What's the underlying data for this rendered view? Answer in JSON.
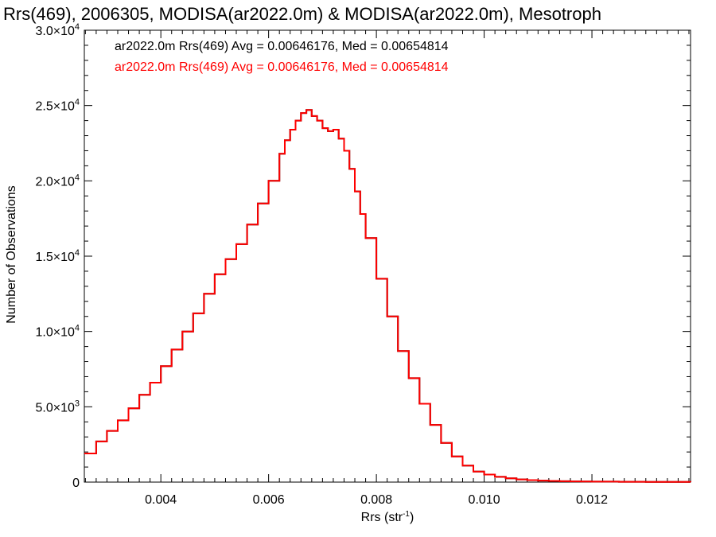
{
  "chart_data": {
    "type": "line",
    "title": "Rrs(469), 2006305, MODISA(ar2022.0m) & MODISA(ar2022.0m), Mesotroph",
    "xlabel": "Rrs (str",
    "xlabel_sup": "-1",
    "xlabel_close": ")",
    "ylabel": "Number of Observations",
    "xlim": [
      0.00258,
      0.01383
    ],
    "ylim": [
      0,
      30000
    ],
    "x_ticks": [
      0.004,
      0.006,
      0.008,
      0.01,
      0.012
    ],
    "x_tick_labels": [
      "0.004",
      "0.006",
      "0.008",
      "0.010",
      "0.012"
    ],
    "y_ticks": [
      {
        "value": 0,
        "mantissa": "0",
        "exp": ""
      },
      {
        "value": 5000,
        "mantissa": "5.0×10",
        "exp": "3"
      },
      {
        "value": 10000,
        "mantissa": "1.0×10",
        "exp": "4"
      },
      {
        "value": 15000,
        "mantissa": "1.5×10",
        "exp": "4"
      },
      {
        "value": 20000,
        "mantissa": "2.0×10",
        "exp": "4"
      },
      {
        "value": 25000,
        "mantissa": "2.5×10",
        "exp": "4"
      },
      {
        "value": 30000,
        "mantissa": "3.0×10",
        "exp": "4"
      }
    ],
    "grid": false,
    "legend_position": "top-left",
    "series": [
      {
        "name": "ar2022.0m Rrs(469) Avg = 0.00646176, Med = 0.00654814",
        "color": "#000000",
        "x": [
          0.00258,
          0.0028,
          0.003,
          0.0032,
          0.0034,
          0.0036,
          0.0038,
          0.004,
          0.0042,
          0.0044,
          0.0046,
          0.0048,
          0.005,
          0.0052,
          0.0054,
          0.0056,
          0.0058,
          0.006,
          0.0062,
          0.0063,
          0.0064,
          0.0065,
          0.0066,
          0.0067,
          0.0068,
          0.0069,
          0.007,
          0.0071,
          0.0072,
          0.0073,
          0.0074,
          0.0075,
          0.0076,
          0.0077,
          0.0078,
          0.008,
          0.0082,
          0.0084,
          0.0086,
          0.0088,
          0.009,
          0.0092,
          0.0094,
          0.0096,
          0.0098,
          0.01,
          0.0102,
          0.0104,
          0.0106,
          0.0108,
          0.011,
          0.0112,
          0.0114,
          0.0116,
          0.0118,
          0.012,
          0.0125,
          0.013,
          0.01383
        ],
        "y": [
          1900,
          2700,
          3400,
          4100,
          4900,
          5800,
          6600,
          7700,
          8800,
          10000,
          11200,
          12500,
          13800,
          14800,
          15800,
          17100,
          18500,
          20000,
          21800,
          22700,
          23400,
          24000,
          24500,
          24700,
          24300,
          24000,
          23500,
          23300,
          23400,
          22800,
          22000,
          20800,
          19300,
          17800,
          16200,
          13500,
          11000,
          8700,
          6900,
          5200,
          3800,
          2600,
          1700,
          1100,
          700,
          500,
          350,
          250,
          180,
          130,
          100,
          80,
          60,
          50,
          40,
          30,
          20,
          10,
          0
        ]
      },
      {
        "name": "ar2022.0m Rrs(469) Avg = 0.00646176, Med = 0.00654814",
        "color": "#ff0000",
        "x": [
          0.00258,
          0.0028,
          0.003,
          0.0032,
          0.0034,
          0.0036,
          0.0038,
          0.004,
          0.0042,
          0.0044,
          0.0046,
          0.0048,
          0.005,
          0.0052,
          0.0054,
          0.0056,
          0.0058,
          0.006,
          0.0062,
          0.0063,
          0.0064,
          0.0065,
          0.0066,
          0.0067,
          0.0068,
          0.0069,
          0.007,
          0.0071,
          0.0072,
          0.0073,
          0.0074,
          0.0075,
          0.0076,
          0.0077,
          0.0078,
          0.008,
          0.0082,
          0.0084,
          0.0086,
          0.0088,
          0.009,
          0.0092,
          0.0094,
          0.0096,
          0.0098,
          0.01,
          0.0102,
          0.0104,
          0.0106,
          0.0108,
          0.011,
          0.0112,
          0.0114,
          0.0116,
          0.0118,
          0.012,
          0.0125,
          0.013,
          0.01383
        ],
        "y": [
          1900,
          2700,
          3400,
          4100,
          4900,
          5800,
          6600,
          7700,
          8800,
          10000,
          11200,
          12500,
          13800,
          14800,
          15800,
          17100,
          18500,
          20000,
          21800,
          22700,
          23400,
          24000,
          24500,
          24700,
          24300,
          24000,
          23500,
          23300,
          23400,
          22800,
          22000,
          20800,
          19300,
          17800,
          16200,
          13500,
          11000,
          8700,
          6900,
          5200,
          3800,
          2600,
          1700,
          1100,
          700,
          500,
          350,
          250,
          180,
          130,
          100,
          80,
          60,
          50,
          40,
          30,
          20,
          10,
          0
        ]
      }
    ]
  }
}
